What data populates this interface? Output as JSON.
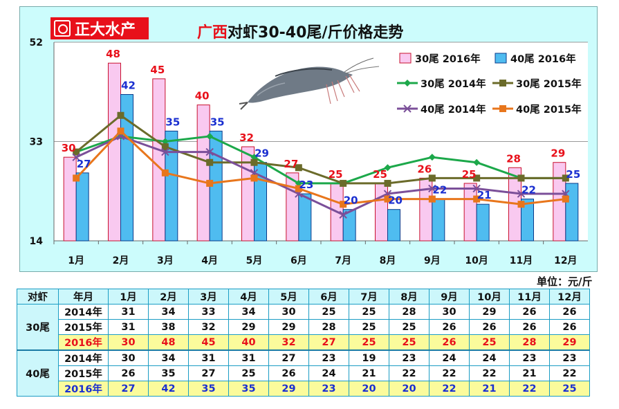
{
  "brand": {
    "name": "正大水产"
  },
  "title": {
    "region": "广西",
    "rest": "对虾30-40尾/斤价格走势"
  },
  "unit": "单位：元/斤",
  "colors": {
    "bar30": "#f9c9f0",
    "bar30_border": "#c8102e",
    "bar40": "#4fbcf0",
    "bar40_border": "#0a3a8a",
    "line_30_2014": "#1ca84a",
    "line_30_2015": "#6b6b2a",
    "line_40_2014": "#7b4f99",
    "line_40_2015": "#e8761c",
    "label30": "#e8101a",
    "label40": "#1a2fd0"
  },
  "chart_data": {
    "type": "bar",
    "title": "广西对虾30-40尾/斤价格走势",
    "categories": [
      "1月",
      "2月",
      "3月",
      "4月",
      "5月",
      "6月",
      "7月",
      "8月",
      "9月",
      "10月",
      "11月",
      "12月"
    ],
    "ylim": [
      14,
      52
    ],
    "yticks": [
      "14",
      "33",
      "52"
    ],
    "series": [
      {
        "name": "30尾 2016年",
        "kind": "bar",
        "values": [
          30,
          48,
          45,
          40,
          32,
          27,
          25,
          25,
          26,
          25,
          28,
          29
        ]
      },
      {
        "name": "40尾 2016年",
        "kind": "bar",
        "values": [
          27,
          42,
          35,
          35,
          29,
          23,
          20,
          20,
          22,
          21,
          22,
          25
        ]
      },
      {
        "name": "30尾 2014年",
        "kind": "line",
        "values": [
          31,
          34,
          33,
          34,
          30,
          25,
          25,
          28,
          30,
          29,
          26,
          26
        ]
      },
      {
        "name": "30尾 2015年",
        "kind": "line",
        "values": [
          31,
          38,
          32,
          29,
          29,
          28,
          25,
          25,
          26,
          26,
          26,
          26
        ]
      },
      {
        "name": "40尾 2014年",
        "kind": "line",
        "values": [
          30,
          34,
          31,
          31,
          27,
          23,
          19,
          23,
          24,
          24,
          23,
          23
        ]
      },
      {
        "name": "40尾 2015年",
        "kind": "line",
        "values": [
          26,
          35,
          27,
          25,
          26,
          24,
          21,
          22,
          22,
          22,
          21,
          22
        ]
      }
    ],
    "bar_labels_30": [
      "30",
      "48",
      "45",
      "40",
      "32",
      "27",
      "25",
      "25",
      "26",
      "25",
      "28",
      "29"
    ],
    "bar_labels_40": [
      "27",
      "42",
      "35",
      "35",
      "29",
      "23",
      "20",
      "20",
      "22",
      "21",
      "22",
      "25"
    ],
    "legend": [
      "30尾 2016年",
      "40尾 2016年",
      "30尾 2014年",
      "30尾 2015年",
      "40尾 2014年",
      "40尾 2015年"
    ],
    "legend_position": "top-right"
  },
  "table": {
    "header": [
      "对虾",
      "年月",
      "1月",
      "2月",
      "3月",
      "4月",
      "5月",
      "6月",
      "7月",
      "8月",
      "9月",
      "10月",
      "11月",
      "12月"
    ],
    "groups": [
      {
        "name": "30尾",
        "rows": [
          {
            "year": "2014年",
            "values": [
              "31",
              "34",
              "33",
              "34",
              "30",
              "25",
              "25",
              "28",
              "30",
              "29",
              "26",
              "26"
            ]
          },
          {
            "year": "2015年",
            "values": [
              "31",
              "38",
              "32",
              "29",
              "29",
              "28",
              "25",
              "25",
              "26",
              "26",
              "26",
              "26"
            ]
          },
          {
            "year": "2016年",
            "values": [
              "30",
              "48",
              "45",
              "40",
              "32",
              "27",
              "25",
              "25",
              "26",
              "25",
              "28",
              "29"
            ]
          }
        ]
      },
      {
        "name": "40尾",
        "rows": [
          {
            "year": "2014年",
            "values": [
              "30",
              "34",
              "31",
              "31",
              "27",
              "23",
              "19",
              "23",
              "24",
              "24",
              "23",
              "23"
            ]
          },
          {
            "year": "2015年",
            "values": [
              "26",
              "35",
              "27",
              "25",
              "26",
              "24",
              "21",
              "22",
              "22",
              "22",
              "21",
              "22"
            ]
          },
          {
            "year": "2016年",
            "values": [
              "27",
              "42",
              "35",
              "35",
              "29",
              "23",
              "20",
              "20",
              "22",
              "21",
              "22",
              "25"
            ]
          }
        ]
      }
    ]
  }
}
